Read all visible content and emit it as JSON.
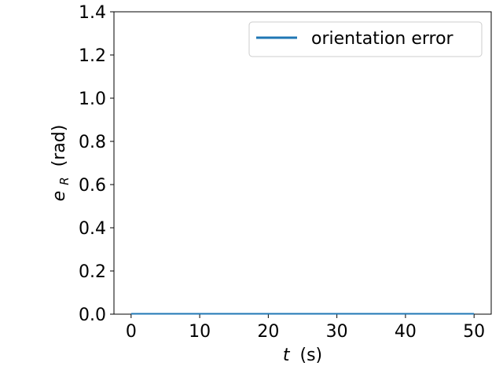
{
  "chart_data": {
    "type": "line",
    "xlabel": {
      "main": "t",
      "unit": "(s)"
    },
    "ylabel": {
      "main": "e",
      "subscript": "R",
      "unit": "(rad)"
    },
    "xlim": [
      -2.5,
      52.5
    ],
    "ylim": [
      0,
      1.4
    ],
    "xticks": [
      0,
      10,
      20,
      30,
      40,
      50
    ],
    "yticks": [
      0.0,
      0.2,
      0.4,
      0.6,
      0.8,
      1.0,
      1.2,
      1.4
    ],
    "xtick_labels": [
      "0",
      "10",
      "20",
      "30",
      "40",
      "50"
    ],
    "ytick_labels": [
      "0.0",
      "0.2",
      "0.4",
      "0.6",
      "0.8",
      "1.0",
      "1.2",
      "1.4"
    ],
    "legend_position": "top-right",
    "grid": false,
    "series": [
      {
        "name": "orientation error",
        "color": "#1f77b4",
        "x": [
          0,
          5,
          10,
          15,
          20,
          25,
          30,
          35,
          40,
          45,
          50
        ],
        "y": [
          0.002,
          0.002,
          0.002,
          0.002,
          0.002,
          0.002,
          0.002,
          0.002,
          0.002,
          0.002,
          0.002
        ]
      }
    ]
  }
}
